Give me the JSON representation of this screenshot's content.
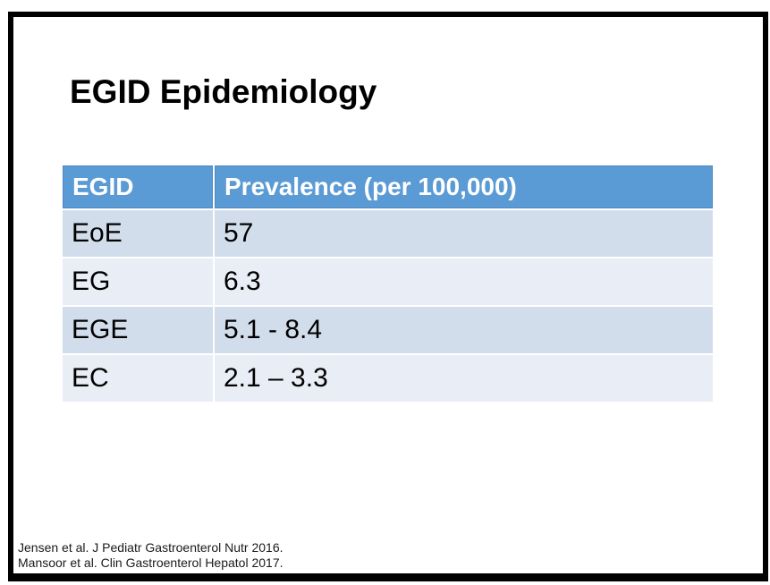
{
  "slide": {
    "title": "EGID Epidemiology",
    "table": {
      "headers": [
        "EGID",
        "Prevalence (per 100,000)"
      ],
      "rows": [
        {
          "egid": "EoE",
          "prevalence": "57"
        },
        {
          "egid": "EG",
          "prevalence": "6.3"
        },
        {
          "egid": "EGE",
          "prevalence": "5.1 - 8.4"
        },
        {
          "egid": "EC",
          "prevalence": "2.1 – 3.3"
        }
      ]
    },
    "citations": [
      "Jensen et al. J Pediatr Gastroenterol Nutr 2016.",
      "Mansoor et al. Clin Gastroenterol Hepatol 2017."
    ],
    "colors": {
      "header_bg": "#5B9BD5",
      "header_text": "#FFFFFF",
      "row_band_dark": "#D2DDEC",
      "row_band_light": "#E9EDF5",
      "frame_border": "#000000",
      "body_text": "#000000"
    }
  }
}
